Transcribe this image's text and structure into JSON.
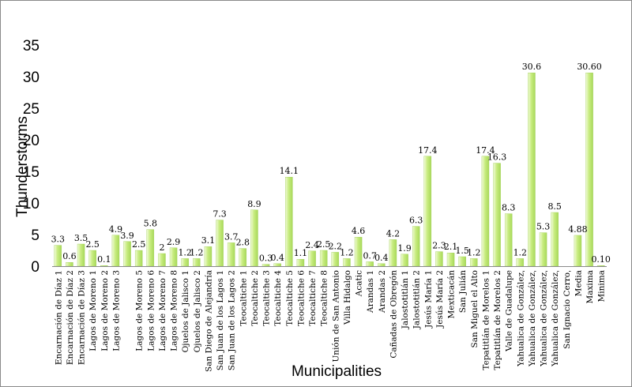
{
  "chart_data": {
    "type": "bar",
    "title": "",
    "xlabel": "Municipalities",
    "ylabel": "Thunderstorms",
    "ylim": [
      0,
      35
    ],
    "yticks": [
      "0",
      "5",
      "10",
      "15",
      "20",
      "25",
      "30",
      "35"
    ],
    "grid": false,
    "legend": "none",
    "bar_color": "#b8e36a",
    "categories": [
      "Encarnación de Díaz 1",
      "Encarnación de Díaz 2",
      "Encarnación de Díaz 3",
      "Lagos de Moreno 1",
      "Lagos de Moreno 2",
      "Lagos de Moreno 3",
      "",
      "Lagos de Moreno 5",
      "Lagos de Moreno 6",
      "Lagos de Moreno 7",
      "Lagos de Moreno 8",
      "Ojuelos de Jalisco 1",
      "Ojuelos de Jalisco 2",
      "San Diego de Alejandría",
      "San Juan de los Lagos 1",
      "San Juan de los Lagos 2",
      "Teocaltiche 1",
      "Teocaltiche 2",
      "Teocaltiche 3",
      "Teocaltiche 4",
      "Teocaltiche 5",
      "Teocaltiche 6",
      "Teocaltiche 7",
      "Teocaltiche 8",
      "Unión de San Antonio",
      "Villa Hidalgo",
      "Acatic",
      "Arandas 1",
      "Arandas 2",
      "Cañadas de Obregón",
      "Jalostotitlán 1",
      "Jalostotitlán 2",
      "Jesús María 1",
      "Jesús María 2",
      "Mexticacán",
      "San Julián",
      "San Miguel el Alto",
      "Tepatitlán de Morelos 1",
      "Tepatitlán de Morelos 2",
      "Valle de Guadalupe",
      "Yahualica de Gonzálezˌ",
      "Yahualica de Gonzálezˌ",
      "Yahualica de Gonzálezˌ",
      "Yahualica de Gonzálezˌ",
      "San Ignacio Cerroˌ",
      "Media",
      "Maxima",
      "Minima"
    ],
    "values": [
      3.3,
      0.6,
      3.5,
      2.5,
      0.1,
      4.9,
      3.9,
      2.5,
      5.8,
      2,
      2.9,
      1.2,
      1.2,
      3.1,
      7.3,
      3.7,
      2.8,
      8.9,
      0.3,
      0.4,
      14.1,
      1.1,
      2.4,
      2.5,
      2.2,
      1.2,
      4.6,
      0.7,
      0.4,
      4.2,
      1.9,
      6.3,
      17.4,
      2.3,
      2.1,
      1.5,
      1.2,
      17.4,
      16.3,
      8.3,
      1.2,
      30.6,
      5.3,
      8.5,
      null,
      4.88,
      30.6,
      0.1
    ],
    "data_labels": [
      "3.3",
      "0.6",
      "3.5",
      "2.5",
      "0.1",
      "4.9",
      "3.9",
      "2.5",
      "5.8",
      "2",
      "2.9",
      "1.2",
      "1.2",
      "3.1",
      "7.3",
      "3.7",
      "2.8",
      "8.9",
      "0.3",
      "0.4",
      "14.1",
      "1.1",
      "2.4",
      "2.5",
      "2.2",
      "1.2",
      "4.6",
      "0.7",
      "0.4",
      "4.2",
      "1.9",
      "6.3",
      "17.4",
      "2.3",
      "2.1",
      "1.5",
      "1.2",
      "17.4",
      "16.3",
      "8.3",
      "1.2",
      "30.6",
      "5.3",
      "8.5",
      "",
      "4.88",
      "30.60",
      "0.10"
    ]
  }
}
